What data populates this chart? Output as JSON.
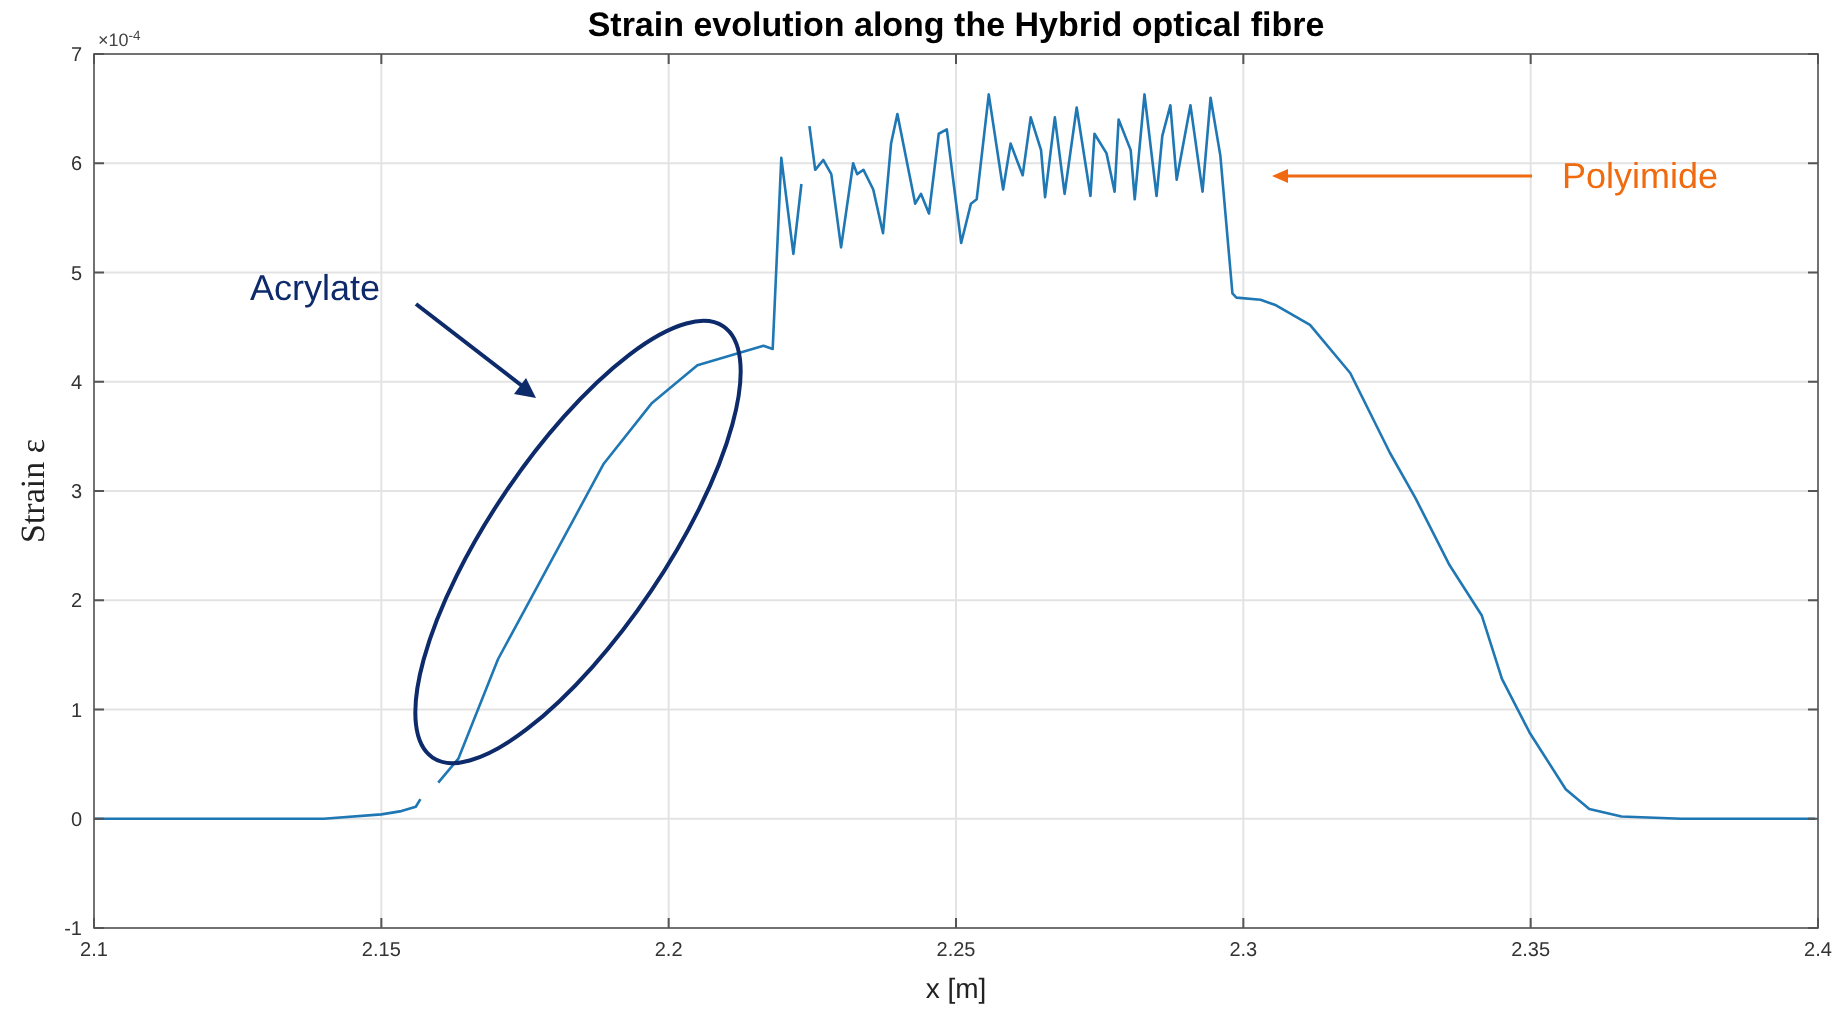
{
  "chart_data": {
    "type": "line",
    "title": "Strain evolution along the Hybrid optical fibre",
    "xlabel": "x [m]",
    "ylabel": "Strain ε",
    "xlim": [
      2.1,
      2.4
    ],
    "xticks": [
      2.1,
      2.15,
      2.2,
      2.25,
      2.3,
      2.35,
      2.4
    ],
    "ylim": [
      -1,
      7
    ],
    "yticks": [
      -1,
      0,
      1,
      2,
      3,
      4,
      5,
      6,
      7
    ],
    "grid": true,
    "annotations": [
      "×10$^{-4}$",
      "Acrylate",
      "Polyimide"
    ],
    "series": [
      {
        "color": "#1f77b4",
        "x": [
          2.1,
          2.11,
          2.12,
          2.13,
          2.14,
          2.15,
          2.1535,
          2.156,
          2.1568,
          2.158,
          2.1599,
          2.1634,
          2.1703,
          2.1773,
          2.1887,
          2.197,
          2.205,
          2.2165,
          2.2181,
          2.2196,
          2.2217,
          2.2231,
          2.2238,
          2.2245,
          2.2255,
          2.2269,
          2.2283,
          2.23,
          2.2321,
          2.2328,
          2.2339,
          2.2356,
          2.2373,
          2.2387,
          2.2398,
          2.2429,
          2.2439,
          2.2453,
          2.247,
          2.2484,
          2.2509,
          2.2526,
          2.2536,
          2.2557,
          2.2582,
          2.2595,
          2.2616,
          2.263,
          2.2648,
          2.2655,
          2.2672,
          2.2689,
          2.271,
          2.2734,
          2.2741,
          2.2762,
          2.2776,
          2.2783,
          2.2804,
          2.2811,
          2.2828,
          2.2849,
          2.2859,
          2.2873,
          2.2884,
          2.2908,
          2.2929,
          2.2943,
          2.296,
          2.2981,
          2.2988,
          2.303,
          2.3057,
          2.3116,
          2.3186,
          2.3255,
          2.33,
          2.3359,
          2.3415,
          2.345,
          2.3498,
          2.3561,
          2.3602,
          2.3658,
          2.3762,
          2.3891,
          2.3925,
          2.3995
        ],
        "values": [
          0,
          0,
          0,
          0,
          0,
          0.04,
          0.07,
          0.11,
          0.18,
          null,
          0.33,
          0.55,
          1.46,
          2.14,
          3.25,
          3.8,
          4.15,
          4.33,
          4.3,
          6.05,
          5.17,
          5.81,
          null,
          6.34,
          5.94,
          6.03,
          5.9,
          5.23,
          6,
          5.9,
          5.94,
          5.76,
          5.36,
          6.18,
          6.45,
          5.63,
          5.72,
          5.54,
          6.27,
          6.31,
          5.27,
          5.63,
          5.67,
          6.63,
          5.76,
          6.18,
          5.89,
          6.42,
          6.12,
          5.69,
          6.42,
          5.72,
          6.51,
          5.7,
          6.27,
          6.09,
          5.74,
          6.4,
          6.12,
          5.67,
          6.63,
          5.7,
          6.25,
          6.53,
          5.85,
          6.53,
          5.74,
          6.6,
          6.07,
          4.81,
          4.77,
          4.75,
          4.7,
          4.52,
          4.08,
          3.35,
          2.93,
          2.32,
          1.86,
          1.28,
          0.79,
          0.27,
          0.09,
          0.02,
          0,
          0,
          0,
          0
        ]
      }
    ]
  }
}
